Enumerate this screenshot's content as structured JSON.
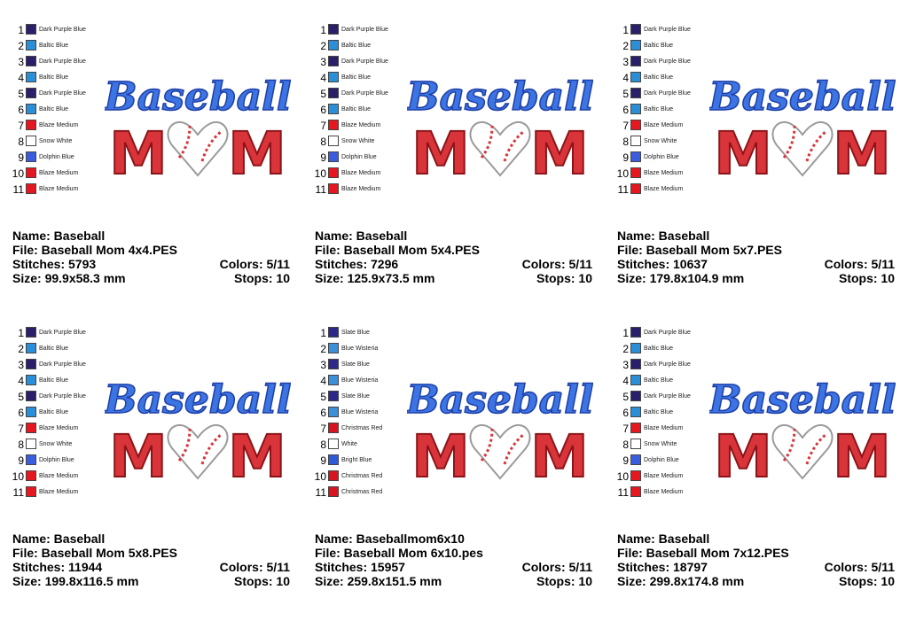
{
  "artwork": {
    "word": "Baseball",
    "letter": "M"
  },
  "panels": [
    {
      "colors": [
        {
          "num": 1,
          "name": "Dark Purple Blue",
          "color": "#2a1f6b"
        },
        {
          "num": 2,
          "name": "Baltic Blue",
          "color": "#2a8fd6"
        },
        {
          "num": 3,
          "name": "Dark Purple Blue",
          "color": "#2a1f6b"
        },
        {
          "num": 4,
          "name": "Baltic Blue",
          "color": "#2a8fd6"
        },
        {
          "num": 5,
          "name": "Dark Purple Blue",
          "color": "#2a1f6b"
        },
        {
          "num": 6,
          "name": "Baltic Blue",
          "color": "#2a8fd6"
        },
        {
          "num": 7,
          "name": "Blaze Medium",
          "color": "#e8161e"
        },
        {
          "num": 8,
          "name": "Snow White",
          "color": "#ffffff"
        },
        {
          "num": 9,
          "name": "Dolphin Blue",
          "color": "#3a5de0"
        },
        {
          "num": 10,
          "name": "Blaze Medium",
          "color": "#e8161e"
        },
        {
          "num": 11,
          "name": "Blaze Medium",
          "color": "#e8161e"
        }
      ],
      "info": {
        "name": "Name: Baseball",
        "file": "File: Baseball Mom 4x4.PES",
        "stitches": "Stitches: 5793",
        "size": "Size: 99.9x58.3 mm",
        "colors": "Colors: 5/11",
        "stops": "Stops: 10"
      }
    },
    {
      "colors": [
        {
          "num": 1,
          "name": "Dark Purple Blue",
          "color": "#2a1f6b"
        },
        {
          "num": 2,
          "name": "Baltic Blue",
          "color": "#2a8fd6"
        },
        {
          "num": 3,
          "name": "Dark Purple Blue",
          "color": "#2a1f6b"
        },
        {
          "num": 4,
          "name": "Baltic Blue",
          "color": "#2a8fd6"
        },
        {
          "num": 5,
          "name": "Dark Purple Blue",
          "color": "#2a1f6b"
        },
        {
          "num": 6,
          "name": "Baltic Blue",
          "color": "#2a8fd6"
        },
        {
          "num": 7,
          "name": "Blaze Medium",
          "color": "#e8161e"
        },
        {
          "num": 8,
          "name": "Snow White",
          "color": "#ffffff"
        },
        {
          "num": 9,
          "name": "Dolphin Blue",
          "color": "#3a5de0"
        },
        {
          "num": 10,
          "name": "Blaze Medium",
          "color": "#e8161e"
        },
        {
          "num": 11,
          "name": "Blaze Medium",
          "color": "#e8161e"
        }
      ],
      "info": {
        "name": "Name: Baseball",
        "file": "File: Baseball Mom 5x4.PES",
        "stitches": "Stitches: 7296",
        "size": "Size: 125.9x73.5 mm",
        "colors": "Colors: 5/11",
        "stops": "Stops: 10"
      }
    },
    {
      "colors": [
        {
          "num": 1,
          "name": "Dark Purple Blue",
          "color": "#2a1f6b"
        },
        {
          "num": 2,
          "name": "Baltic Blue",
          "color": "#2a8fd6"
        },
        {
          "num": 3,
          "name": "Dark Purple Blue",
          "color": "#2a1f6b"
        },
        {
          "num": 4,
          "name": "Baltic Blue",
          "color": "#2a8fd6"
        },
        {
          "num": 5,
          "name": "Dark Purple Blue",
          "color": "#2a1f6b"
        },
        {
          "num": 6,
          "name": "Baltic Blue",
          "color": "#2a8fd6"
        },
        {
          "num": 7,
          "name": "Blaze Medium",
          "color": "#e8161e"
        },
        {
          "num": 8,
          "name": "Snow White",
          "color": "#ffffff"
        },
        {
          "num": 9,
          "name": "Dolphin Blue",
          "color": "#3a5de0"
        },
        {
          "num": 10,
          "name": "Blaze Medium",
          "color": "#e8161e"
        },
        {
          "num": 11,
          "name": "Blaze Medium",
          "color": "#e8161e"
        }
      ],
      "info": {
        "name": "Name: Baseball",
        "file": "File: Baseball Mom 5x7.PES",
        "stitches": "Stitches: 10637",
        "size": "Size: 179.8x104.9 mm",
        "colors": "Colors: 5/11",
        "stops": "Stops: 10"
      }
    },
    {
      "colors": [
        {
          "num": 1,
          "name": "Dark Purple Blue",
          "color": "#2a1f6b"
        },
        {
          "num": 2,
          "name": "Baltic Blue",
          "color": "#2a8fd6"
        },
        {
          "num": 3,
          "name": "Dark Purple Blue",
          "color": "#2a1f6b"
        },
        {
          "num": 4,
          "name": "Baltic Blue",
          "color": "#2a8fd6"
        },
        {
          "num": 5,
          "name": "Dark Purple Blue",
          "color": "#2a1f6b"
        },
        {
          "num": 6,
          "name": "Baltic Blue",
          "color": "#2a8fd6"
        },
        {
          "num": 7,
          "name": "Blaze Medium",
          "color": "#e8161e"
        },
        {
          "num": 8,
          "name": "Snow White",
          "color": "#ffffff"
        },
        {
          "num": 9,
          "name": "Dolphin Blue",
          "color": "#3a5de0"
        },
        {
          "num": 10,
          "name": "Blaze Medium",
          "color": "#e8161e"
        },
        {
          "num": 11,
          "name": "Blaze Medium",
          "color": "#e8161e"
        }
      ],
      "info": {
        "name": "Name: Baseball",
        "file": "File: Baseball Mom 5x8.PES",
        "stitches": "Stitches: 11944",
        "size": "Size: 199.8x116.5 mm",
        "colors": "Colors: 5/11",
        "stops": "Stops: 10"
      }
    },
    {
      "colors": [
        {
          "num": 1,
          "name": "Slate Blue",
          "color": "#2e2a8a"
        },
        {
          "num": 2,
          "name": "Blue Wisteria",
          "color": "#3d8fd8"
        },
        {
          "num": 3,
          "name": "Slate Blue",
          "color": "#2e2a8a"
        },
        {
          "num": 4,
          "name": "Blue Wisteria",
          "color": "#3d8fd8"
        },
        {
          "num": 5,
          "name": "Slate Blue",
          "color": "#2e2a8a"
        },
        {
          "num": 6,
          "name": "Blue Wisteria",
          "color": "#3d8fd8"
        },
        {
          "num": 7,
          "name": "Christmas Red",
          "color": "#d8141c"
        },
        {
          "num": 8,
          "name": "White",
          "color": "#ffffff"
        },
        {
          "num": 9,
          "name": "Bright Blue",
          "color": "#2d5bd8"
        },
        {
          "num": 10,
          "name": "Christmas Red",
          "color": "#d8141c"
        },
        {
          "num": 11,
          "name": "Christmas Red",
          "color": "#d8141c"
        }
      ],
      "info": {
        "name": "Name: Baseballmom6x10",
        "file": "File: Baseball Mom 6x10.pes",
        "stitches": "Stitches: 15957",
        "size": "Size: 259.8x151.5 mm",
        "colors": "Colors: 5/11",
        "stops": "Stops: 10"
      }
    },
    {
      "colors": [
        {
          "num": 1,
          "name": "Dark Purple Blue",
          "color": "#2a1f6b"
        },
        {
          "num": 2,
          "name": "Baltic Blue",
          "color": "#2a8fd6"
        },
        {
          "num": 3,
          "name": "Dark Purple Blue",
          "color": "#2a1f6b"
        },
        {
          "num": 4,
          "name": "Baltic Blue",
          "color": "#2a8fd6"
        },
        {
          "num": 5,
          "name": "Dark Purple Blue",
          "color": "#2a1f6b"
        },
        {
          "num": 6,
          "name": "Baltic Blue",
          "color": "#2a8fd6"
        },
        {
          "num": 7,
          "name": "Blaze Medium",
          "color": "#e8161e"
        },
        {
          "num": 8,
          "name": "Snow White",
          "color": "#ffffff"
        },
        {
          "num": 9,
          "name": "Dolphin Blue",
          "color": "#3a5de0"
        },
        {
          "num": 10,
          "name": "Blaze Medium",
          "color": "#e8161e"
        },
        {
          "num": 11,
          "name": "Blaze Medium",
          "color": "#e8161e"
        }
      ],
      "info": {
        "name": "Name: Baseball",
        "file": "File: Baseball Mom 7x12.PES",
        "stitches": "Stitches: 18797",
        "size": "Size: 299.8x174.8 mm",
        "colors": "Colors: 5/11",
        "stops": "Stops: 10"
      }
    }
  ]
}
